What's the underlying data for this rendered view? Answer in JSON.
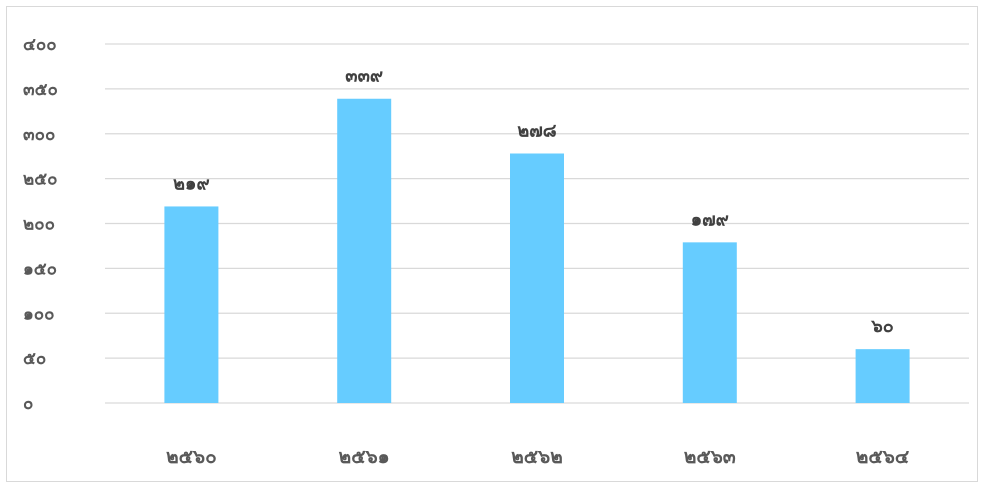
{
  "chart_data": {
    "type": "bar",
    "categories": [
      "๒๕๖๐",
      "๒๕๖๑",
      "๒๕๖๒",
      "๒๕๖๓",
      "๒๕๖๔"
    ],
    "values": [
      219,
      339,
      278,
      179,
      60
    ],
    "data_labels": [
      "๒๑๙",
      "๓๓๙",
      "๒๗๘",
      "๑๗๙",
      "๖๐"
    ],
    "title": "",
    "xlabel": "",
    "ylabel": "",
    "ylim": [
      0,
      400
    ],
    "y_ticks": [
      0,
      50,
      100,
      150,
      200,
      250,
      300,
      350,
      400
    ],
    "y_tick_labels": [
      "๐",
      "๕๐",
      "๑๐๐",
      "๑๕๐",
      "๒๐๐",
      "๒๕๐",
      "๓๐๐",
      "๓๕๐",
      "๔๐๐"
    ],
    "grid": true,
    "legend": "none",
    "colors": {
      "bar": "#66CCFF",
      "gridline": "#D9D9D9",
      "axis_text": "#595959",
      "data_label_text": "#404040",
      "border": "#D9D9D9"
    }
  }
}
